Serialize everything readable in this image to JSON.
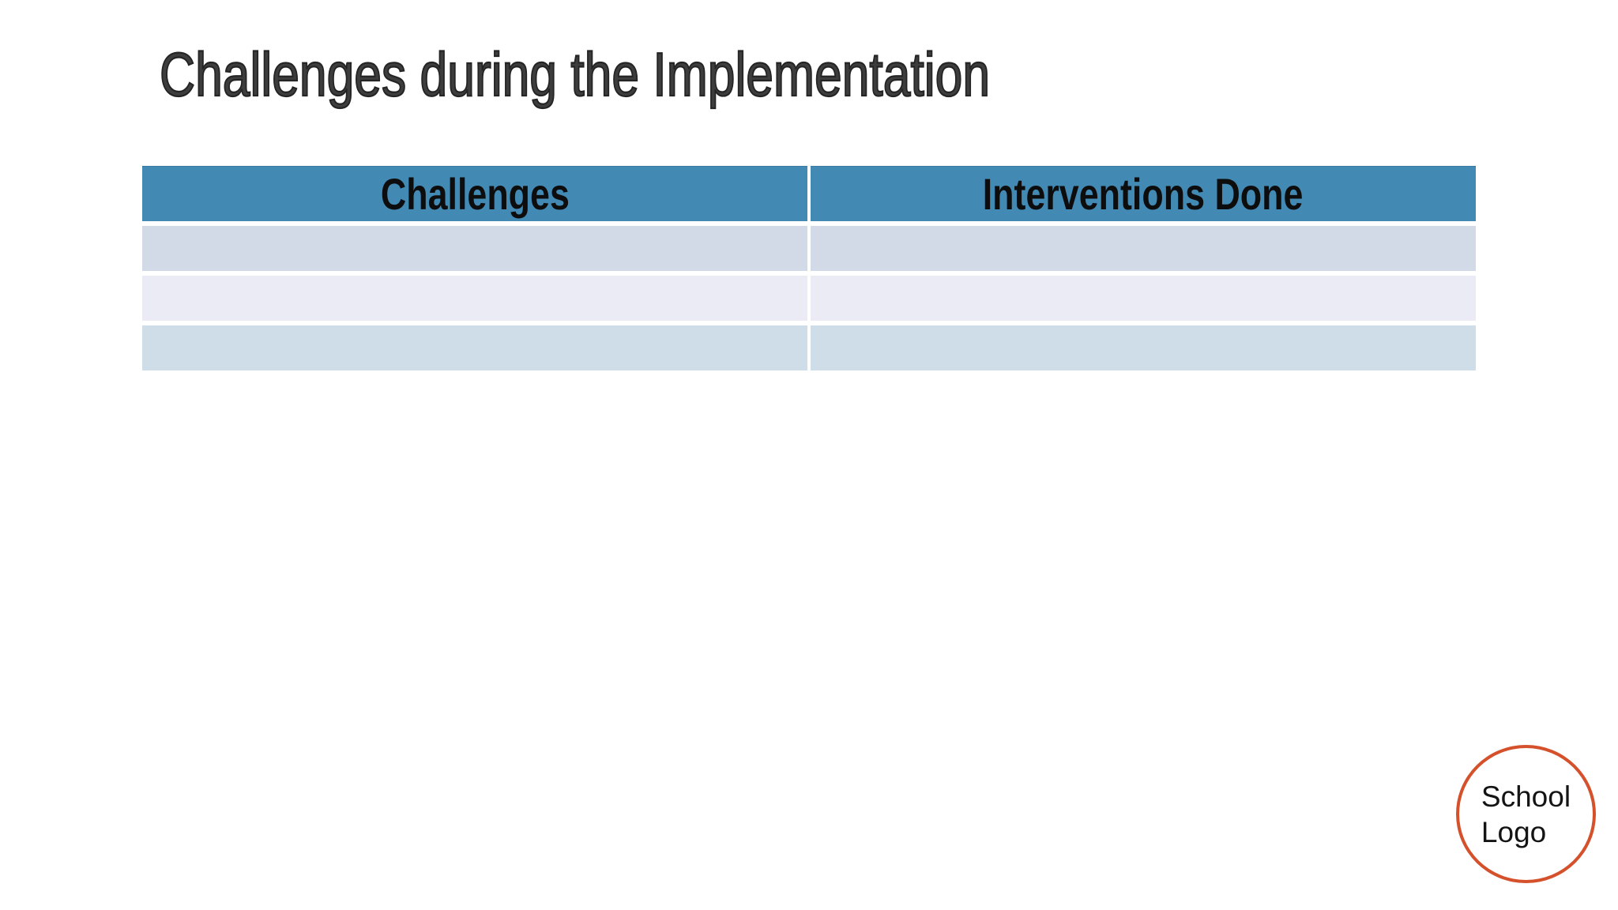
{
  "slide": {
    "title": "Challenges during the Implementation"
  },
  "table": {
    "headers": [
      "Challenges",
      "Interventions Done"
    ],
    "rows": [
      {
        "challenges": "",
        "interventions": ""
      },
      {
        "challenges": "",
        "interventions": ""
      },
      {
        "challenges": "",
        "interventions": ""
      }
    ]
  },
  "logo": {
    "line1": "School",
    "line2": "Logo"
  },
  "colors": {
    "header_bg": "#4289b4",
    "row_odd": "#d2d9e7",
    "row_even": "#eaebf4",
    "row_last": "#cfdde9",
    "title_text": "#3d3d3d",
    "header_text": "#0d0d0d",
    "logo_circle_stroke": "#d4512c",
    "background": "#ffffff"
  }
}
